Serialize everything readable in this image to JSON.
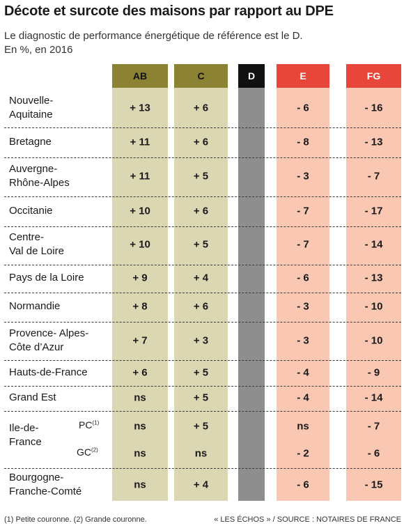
{
  "title": "Décote et surcote des maisons par rapport au DPE",
  "subtitle": "Le diagnostic de performance énergétique de référence est le D.",
  "unit_note": "En %, en 2016",
  "footnote": "(1) Petite couronne. (2) Grande couronne.",
  "source": "« LES ÉCHOS » / SOURCE : NOTAIRES DE FRANCE",
  "colors": {
    "ab_header": "#8c8233",
    "ab_bg": "#dcd7b3",
    "c_header": "#8c8233",
    "c_bg": "#dcd7b3",
    "d_header": "#111111",
    "d_bg": "#8e8e8e",
    "e_header": "#e8463a",
    "e_bg": "#f9c7b2",
    "fg_header": "#e8463a",
    "fg_bg": "#f9c7b2"
  },
  "chart_data": {
    "type": "table",
    "columns": [
      "AB",
      "C",
      "D",
      "E",
      "FG"
    ],
    "rows": [
      {
        "region": [
          "Nouvelle-",
          "Aquitaine"
        ],
        "sub": "",
        "values": [
          "+ 13",
          "+ 6",
          "",
          "- 6",
          "- 16"
        ]
      },
      {
        "region": [
          "Bretagne"
        ],
        "sub": "",
        "values": [
          "+ 11",
          "+ 6",
          "",
          "- 8",
          "- 13"
        ]
      },
      {
        "region": [
          "Auvergne-",
          "Rhône-Alpes"
        ],
        "sub": "",
        "values": [
          "+ 11",
          "+ 5",
          "",
          "- 3",
          "- 7"
        ]
      },
      {
        "region": [
          "Occitanie"
        ],
        "sub": "",
        "values": [
          "+ 10",
          "+ 6",
          "",
          "- 7",
          "- 17"
        ]
      },
      {
        "region": [
          "Centre-",
          "Val de Loire"
        ],
        "sub": "",
        "values": [
          "+ 10",
          "+ 5",
          "",
          "- 7",
          "- 14"
        ]
      },
      {
        "region": [
          "Pays de la Loire"
        ],
        "sub": "",
        "values": [
          "+ 9",
          "+ 4",
          "",
          "- 6",
          "- 13"
        ]
      },
      {
        "region": [
          "Normandie"
        ],
        "sub": "",
        "values": [
          "+ 8",
          "+ 6",
          "",
          "- 3",
          "- 10"
        ]
      },
      {
        "region": [
          "Provence- Alpes-",
          "Côte d’Azur"
        ],
        "sub": "",
        "values": [
          "+ 7",
          "+ 3",
          "",
          "- 3",
          "- 10"
        ]
      },
      {
        "region": [
          "Hauts-de-France"
        ],
        "sub": "",
        "values": [
          "+ 6",
          "+ 5",
          "",
          "- 4",
          "- 9"
        ]
      },
      {
        "region": [
          "Grand Est"
        ],
        "sub": "",
        "values": [
          "ns",
          "+ 5",
          "",
          "- 4",
          "- 14"
        ]
      },
      {
        "region": [
          "Ile-de-",
          "France"
        ],
        "sub": "PC",
        "sub_note": "(1)",
        "values": [
          "ns",
          "+ 5",
          "",
          "ns",
          "- 7"
        ]
      },
      {
        "region": [],
        "sub": "GC",
        "sub_note": "(2)",
        "values": [
          "ns",
          "ns",
          "",
          "- 2",
          "- 6"
        ]
      },
      {
        "region": [
          "Bourgogne-",
          "Franche-Comté"
        ],
        "sub": "",
        "values": [
          "ns",
          "+ 4",
          "",
          "- 6",
          "- 15"
        ]
      }
    ]
  }
}
